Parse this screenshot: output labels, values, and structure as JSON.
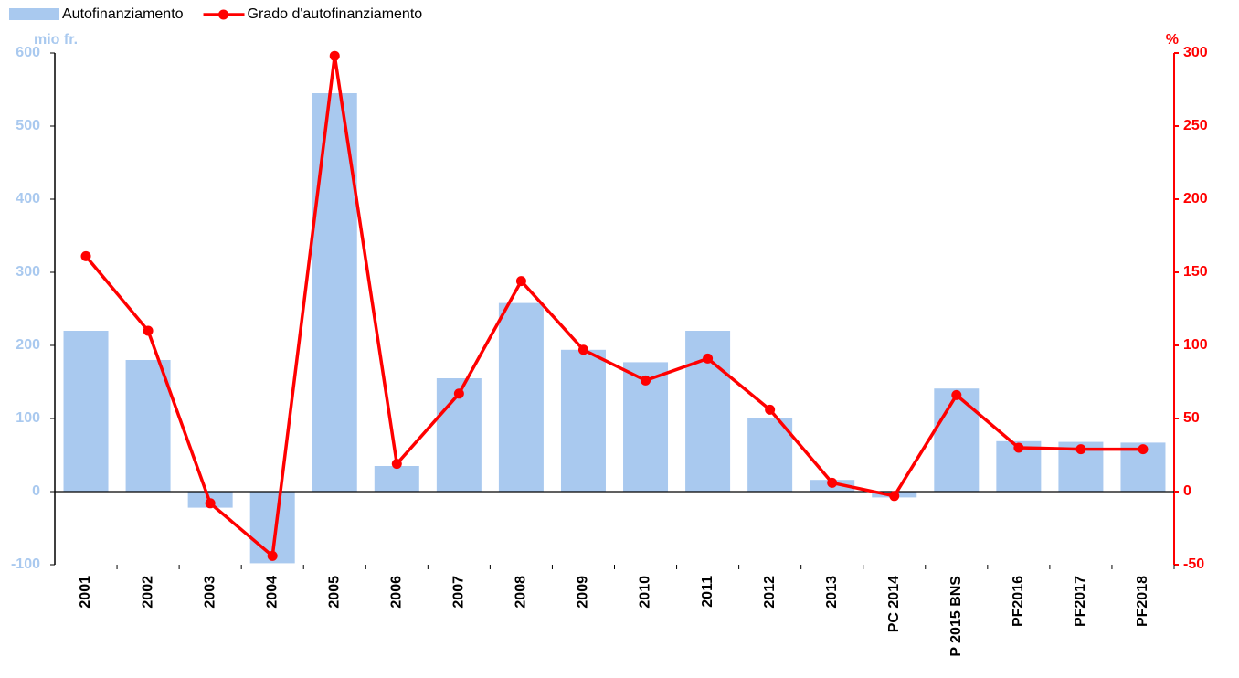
{
  "chart_data": {
    "type": "bar_line",
    "y_label": "mio fr.",
    "y2_label": "%",
    "categories": [
      "2001",
      "2002",
      "2003",
      "2004",
      "2005",
      "2006",
      "2007",
      "2008",
      "2009",
      "2010",
      "2011",
      "2012",
      "2013",
      "PC 2014",
      "P 2015 BNS",
      "PF2016",
      "PF2017",
      "PF2018"
    ],
    "series": [
      {
        "name": "Autofinanziamento",
        "type": "bar",
        "color": "#a9c9ef",
        "values": [
          220,
          180,
          -22,
          -98,
          545,
          35,
          155,
          258,
          194,
          177,
          220,
          101,
          16,
          -8,
          141,
          69,
          68,
          67
        ]
      },
      {
        "name": "Grado d'autofinanziamento",
        "type": "line",
        "axis": "y2",
        "color": "#ff0000",
        "values": [
          161,
          110,
          -8,
          -44,
          298,
          19,
          67,
          144,
          97,
          76,
          91,
          56,
          6,
          -3,
          66,
          30,
          29,
          29
        ]
      }
    ],
    "ylim": [
      -100,
      600
    ],
    "yticks": [
      -100,
      0,
      100,
      200,
      300,
      400,
      500,
      600
    ],
    "y2lim": [
      -50,
      300
    ],
    "y2ticks": [
      -50,
      0,
      50,
      100,
      150,
      200,
      250,
      300
    ],
    "y_color": "#a9c9ef",
    "y2_color": "#ff0000"
  }
}
